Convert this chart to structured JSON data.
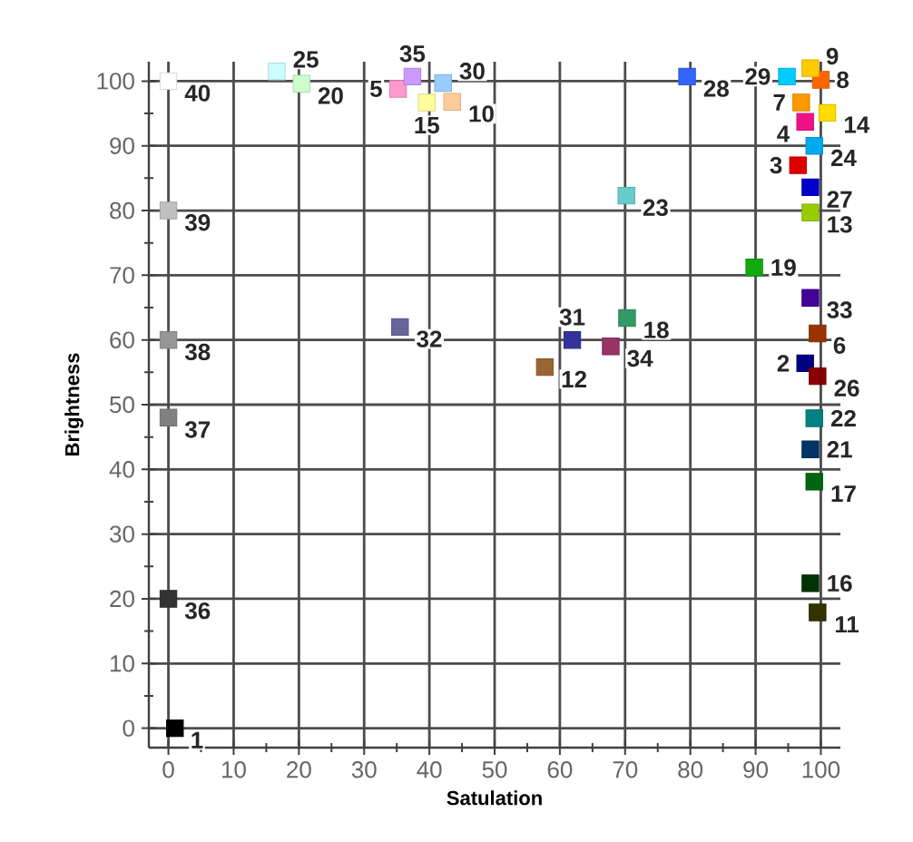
{
  "chart_data": {
    "type": "scatter",
    "xlabel": "Satulation",
    "ylabel": "Brightness",
    "xlim": [
      -3,
      103
    ],
    "ylim": [
      -3,
      103
    ],
    "xticks": [
      0,
      10,
      20,
      30,
      40,
      50,
      60,
      70,
      80,
      90,
      100
    ],
    "yticks": [
      0,
      10,
      20,
      30,
      40,
      50,
      60,
      70,
      80,
      90,
      100
    ],
    "grid": true,
    "marker": "square",
    "series": [
      {
        "x": [
          1,
          97.6,
          96.5,
          97.6,
          35.2,
          99.5,
          97,
          100,
          98.4,
          43.5,
          99.5,
          57.7,
          98.4,
          101,
          39.6,
          98.4,
          99,
          70.3,
          89.8,
          20.4,
          98.4,
          99,
          70.2,
          99,
          16.6,
          99.5,
          98.4,
          79.5,
          94.8,
          42.1,
          61.9,
          35.5,
          98.4,
          67.8,
          37.4,
          0,
          0,
          0,
          0,
          0
        ],
        "values": [
          0,
          56.4,
          87,
          93.7,
          98.8,
          61,
          96.7,
          100.2,
          102,
          96.8,
          17.9,
          55.8,
          79.7,
          95.1,
          96.7,
          22.4,
          38.1,
          63.4,
          71.2,
          99.6,
          43.1,
          47.9,
          82.3,
          90,
          101.5,
          54.4,
          83.6,
          100.7,
          100.7,
          99.7,
          60,
          62,
          66.5,
          59,
          100.7,
          20,
          48,
          60,
          80,
          100
        ],
        "colors": [
          "#000000",
          "#000080",
          "#dd0000",
          "#ee1188",
          "#ff99cc",
          "#993300",
          "#ff9900",
          "#ff6600",
          "#ffcc00",
          "#ffcc99",
          "#333300",
          "#996633",
          "#99cc00",
          "#ffdd00",
          "#ffff99",
          "#003300",
          "#006611",
          "#339966",
          "#11aa11",
          "#ccffcc",
          "#003366",
          "#008080",
          "#66cccc",
          "#00aaee",
          "#ccffff",
          "#880000",
          "#0000cc",
          "#3366ff",
          "#00ccff",
          "#99ccff",
          "#333399",
          "#666699",
          "#440099",
          "#993366",
          "#cc99ff",
          "#333333",
          "#808080",
          "#969696",
          "#c0c0c0",
          "#ffffff"
        ]
      }
    ],
    "annotations": [
      {
        "text": "1",
        "x": 1,
        "y": 0
      },
      {
        "text": "2",
        "x": 97.6,
        "y": 56.4
      },
      {
        "text": "3",
        "x": 96.5,
        "y": 87
      },
      {
        "text": "4",
        "x": 97.6,
        "y": 93.7
      },
      {
        "text": "5",
        "x": 35.2,
        "y": 98.8
      },
      {
        "text": "6",
        "x": 99.5,
        "y": 61
      },
      {
        "text": "7",
        "x": 97,
        "y": 96.7
      },
      {
        "text": "8",
        "x": 100,
        "y": 100.2
      },
      {
        "text": "9",
        "x": 98.4,
        "y": 102
      },
      {
        "text": "10",
        "x": 43.5,
        "y": 96.8
      },
      {
        "text": "11",
        "x": 99.5,
        "y": 17.9
      },
      {
        "text": "12",
        "x": 57.7,
        "y": 55.8
      },
      {
        "text": "13",
        "x": 98.4,
        "y": 79.7
      },
      {
        "text": "14",
        "x": 101,
        "y": 95.1
      },
      {
        "text": "15",
        "x": 39.6,
        "y": 96.7
      },
      {
        "text": "16",
        "x": 98.4,
        "y": 22.4
      },
      {
        "text": "17",
        "x": 99,
        "y": 38.1
      },
      {
        "text": "18",
        "x": 70.3,
        "y": 63.4
      },
      {
        "text": "19",
        "x": 89.8,
        "y": 71.2
      },
      {
        "text": "20",
        "x": 20.4,
        "y": 99.6
      },
      {
        "text": "21",
        "x": 98.4,
        "y": 43.1
      },
      {
        "text": "22",
        "x": 99,
        "y": 47.9
      },
      {
        "text": "23",
        "x": 70.2,
        "y": 82.3
      },
      {
        "text": "24",
        "x": 99,
        "y": 90
      },
      {
        "text": "25",
        "x": 16.6,
        "y": 101.5
      },
      {
        "text": "26",
        "x": 99.5,
        "y": 54.4
      },
      {
        "text": "27",
        "x": 98.4,
        "y": 83.6
      },
      {
        "text": "28",
        "x": 79.5,
        "y": 100.7
      },
      {
        "text": "29",
        "x": 94.8,
        "y": 100.7
      },
      {
        "text": "30",
        "x": 42.1,
        "y": 99.7
      },
      {
        "text": "31",
        "x": 61.9,
        "y": 60
      },
      {
        "text": "32",
        "x": 35.5,
        "y": 62
      },
      {
        "text": "33",
        "x": 98.4,
        "y": 66.5
      },
      {
        "text": "34",
        "x": 67.8,
        "y": 59
      },
      {
        "text": "35",
        "x": 37.4,
        "y": 100.7
      },
      {
        "text": "36",
        "x": 0,
        "y": 20
      },
      {
        "text": "37",
        "x": 0,
        "y": 48
      },
      {
        "text": "38",
        "x": 0,
        "y": 60
      },
      {
        "text": "39",
        "x": 0,
        "y": 80
      },
      {
        "text": "40",
        "x": 0,
        "y": 100
      }
    ]
  }
}
